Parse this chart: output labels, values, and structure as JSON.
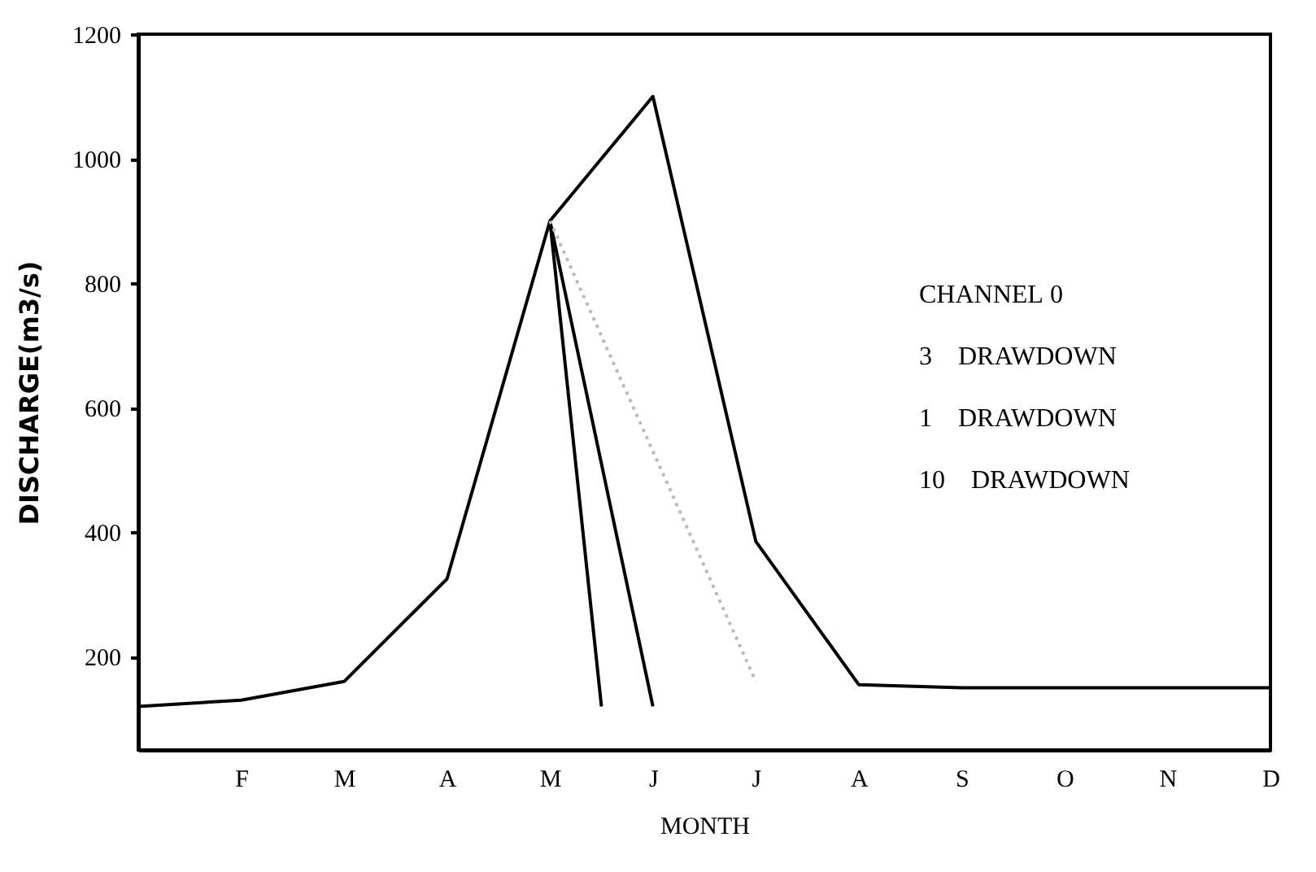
{
  "chart_data": {
    "type": "line",
    "xlabel": "MONTH",
    "ylabel": "DISCHARGE(m3/s)",
    "categories": [
      null,
      null,
      "F",
      null,
      "M",
      null,
      "A",
      null,
      "M",
      null,
      "J",
      null,
      "J",
      null,
      "A",
      null,
      "S",
      null,
      "O",
      null,
      "N",
      null,
      "D"
    ],
    "ylim": [
      50,
      1200
    ],
    "yticks": [
      200,
      400,
      600,
      800,
      1000,
      1200
    ],
    "grid": false,
    "marker": "none",
    "series": [
      {
        "color": "#000000",
        "values": [
          120,
          null,
          130,
          null,
          160,
          null,
          325,
          null,
          900,
          1000,
          1100,
          null,
          385,
          null,
          155,
          null,
          150,
          null,
          150,
          null,
          150,
          null,
          150
        ]
      },
      {
        "color": "#000000",
        "values": [
          null,
          null,
          null,
          null,
          null,
          null,
          null,
          null,
          900,
          120,
          null,
          null,
          null,
          null,
          null,
          null,
          null,
          null,
          null,
          null,
          null,
          null,
          null
        ]
      },
      {
        "color": "#000000",
        "values": [
          null,
          null,
          null,
          null,
          null,
          null,
          null,
          null,
          900,
          null,
          120,
          null,
          null,
          null,
          null,
          null,
          null,
          null,
          null,
          null,
          null,
          null,
          null
        ]
      },
      {
        "color": "#bbbbbb",
        "line_style": "dotted",
        "values": [
          null,
          null,
          null,
          null,
          null,
          null,
          null,
          null,
          900,
          null,
          null,
          null,
          160,
          null,
          null,
          null,
          null,
          null,
          null,
          null,
          null,
          null,
          null
        ]
      }
    ],
    "annotations": [
      "CHANNEL 0",
      "3    DRAWDOWN",
      "1    DRAWDOWN",
      "10    DRAWDOWN"
    ]
  }
}
